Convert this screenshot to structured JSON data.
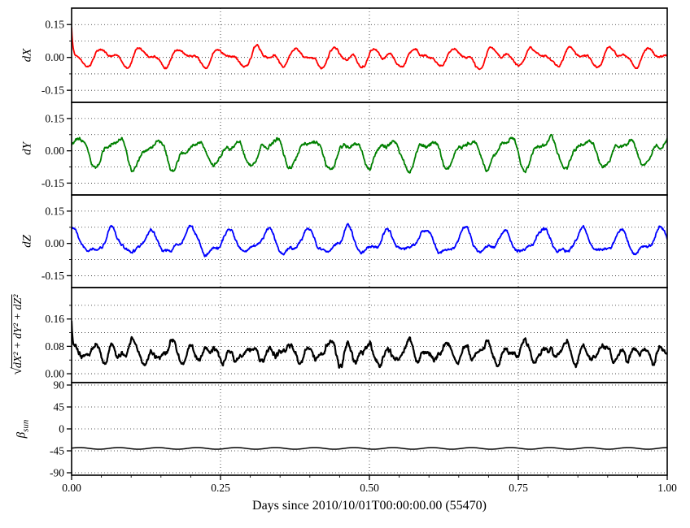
{
  "figure": {
    "background": "#ffffff",
    "grid_style": "dotted",
    "font_color": "#000000"
  },
  "x_axis": {
    "label": "Days since 2010/10/01T00:00:00.00 (55470)",
    "lim": [
      0,
      1
    ],
    "ticks": [
      {
        "value": 0,
        "label": "0.00"
      },
      {
        "value": 0.25,
        "label": "0.25"
      },
      {
        "value": 0.5,
        "label": "0.50"
      },
      {
        "value": 0.75,
        "label": "0.75"
      },
      {
        "value": 1,
        "label": "1.00"
      }
    ],
    "minor_tick_step": 0.05
  },
  "orbit_frequency_cycles_per_day": 15.2,
  "samples_per_day": 1500,
  "chart_data": [
    {
      "type": "line",
      "name": "dX",
      "ylabel": "dX",
      "color": "#ff0000",
      "line_width": 1.8,
      "ylim": [
        -0.205,
        0.225
      ],
      "yticks": [
        {
          "value": 0.15,
          "label": "0.15"
        },
        {
          "value": 0,
          "label": "0.00"
        },
        {
          "value": -0.15,
          "label": "-0.15"
        }
      ],
      "minor_yticks": [
        0.075,
        -0.075
      ],
      "approx_range": [
        -0.07,
        0.16
      ],
      "signal": {
        "kind": "orbit-oscillation",
        "mean": 0,
        "amp1": 0.03,
        "phase1": 2.6,
        "amp2": 0.02,
        "phase2": 5.5,
        "noise": 0.006,
        "initial_spike": 0.15,
        "spike_decay_days": 0.0025
      }
    },
    {
      "type": "line",
      "name": "dY",
      "ylabel": "dY",
      "color": "#008000",
      "line_width": 1.8,
      "ylim": [
        -0.205,
        0.225
      ],
      "yticks": [
        {
          "value": 0.15,
          "label": "0.15"
        },
        {
          "value": 0,
          "label": "0.00"
        },
        {
          "value": -0.15,
          "label": "-0.15"
        }
      ],
      "minor_yticks": [
        0.075,
        -0.075
      ],
      "approx_range": [
        -0.13,
        0.08
      ],
      "signal": {
        "kind": "orbit-oscillation",
        "mean": -0.005,
        "amp1": 0.055,
        "phase1": 0.8,
        "amp2": 0.022,
        "phase2": 3.9,
        "noise": 0.011,
        "initial_spike": 0,
        "spike_decay_days": 0.0025
      }
    },
    {
      "type": "line",
      "name": "dZ",
      "ylabel": "dZ",
      "color": "#0000ff",
      "line_width": 1.8,
      "ylim": [
        -0.205,
        0.225
      ],
      "yticks": [
        {
          "value": 0.15,
          "label": "0.15"
        },
        {
          "value": 0,
          "label": "0.00"
        },
        {
          "value": -0.15,
          "label": "-0.15"
        }
      ],
      "minor_yticks": [
        0.075,
        -0.075
      ],
      "approx_range": [
        -0.07,
        0.09
      ],
      "signal": {
        "kind": "orbit-oscillation",
        "mean": 0.003,
        "amp1": 0.048,
        "phase1": 1.45,
        "amp2": 0.02,
        "phase2": 0.8,
        "noise": 0.009,
        "initial_spike": 0,
        "spike_decay_days": 0.0025
      }
    },
    {
      "type": "line",
      "name": "magnitude",
      "ylabel": "sqrt(dX^2 + dY^2 + dZ^2)",
      "ylabel_radical": "√",
      "ylabel_radicand": "dX² + dY² + dZ²",
      "color": "#000000",
      "line_width": 2.2,
      "ylim": [
        -0.026,
        0.252
      ],
      "yticks": [
        {
          "value": 0.16,
          "label": "0.16"
        },
        {
          "value": 0.08,
          "label": "0.08"
        },
        {
          "value": 0,
          "label": "0.00"
        }
      ],
      "minor_yticks": [
        0.04,
        0.12,
        0.2
      ],
      "approx_range": [
        0.01,
        0.19
      ],
      "derived": "sqrt(dX^2 + dY^2 + dZ^2)"
    },
    {
      "type": "line",
      "name": "beta_sun",
      "ylabel": "β_sun",
      "ylabel_base": "β",
      "ylabel_subscript": "sun",
      "color": "#000000",
      "line_width": 1.5,
      "ylim": [
        -95,
        95
      ],
      "yticks": [
        {
          "value": 90,
          "label": "90"
        },
        {
          "value": 45,
          "label": "45"
        },
        {
          "value": 0,
          "label": "0"
        },
        {
          "value": -45,
          "label": "-45"
        },
        {
          "value": -90,
          "label": "-90"
        }
      ],
      "minor_yticks": [],
      "approx_range": [
        -42,
        -38
      ],
      "signal": {
        "kind": "constant-with-ripple",
        "mean": -40,
        "ripple_amp": 1.7,
        "phase": 0.3
      }
    }
  ]
}
